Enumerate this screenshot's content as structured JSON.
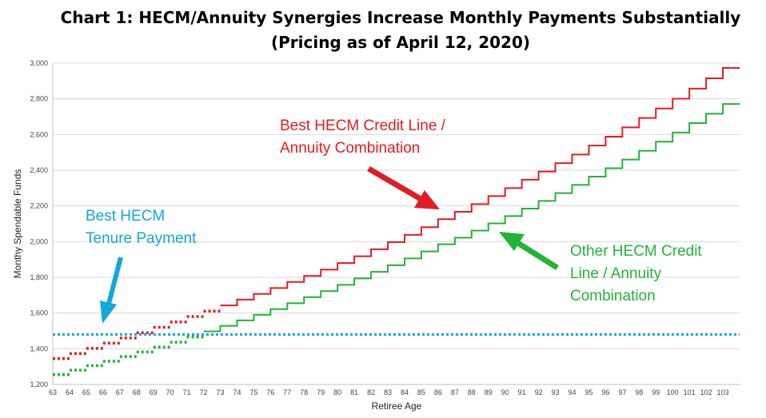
{
  "chart_data": {
    "type": "line",
    "title": "Chart 1: HECM/Annuity Synergies Increase Monthly Payments Substantially",
    "subtitle": "(Pricing as of April 12, 2020)",
    "xlabel": "Retiree Age",
    "ylabel": "Monthy Spendable Funds",
    "xlim": [
      63,
      104
    ],
    "ylim": [
      1200,
      3000
    ],
    "y_ticks": [
      1200,
      1400,
      1600,
      1800,
      2000,
      2200,
      2400,
      2600,
      2800,
      3000
    ],
    "y_tick_labels": [
      "1,200",
      "1,400",
      "1,600",
      "1,800",
      "2,000",
      "2,200",
      "2,400",
      "2,600",
      "2,800",
      "3,000"
    ],
    "x_ticks": [
      63,
      64,
      65,
      66,
      67,
      68,
      69,
      70,
      71,
      72,
      73,
      74,
      75,
      76,
      77,
      78,
      79,
      80,
      81,
      82,
      83,
      84,
      85,
      86,
      87,
      88,
      89,
      90,
      91,
      92,
      93,
      94,
      95,
      96,
      97,
      98,
      99,
      100,
      101,
      102,
      103
    ],
    "grid": true,
    "series": [
      {
        "name": "Best HECM Credit Line / Annuity Combination",
        "color": "#e31c23",
        "style": "step",
        "dotted_until": 73,
        "x": [
          63,
          64,
          65,
          66,
          67,
          68,
          69,
          70,
          71,
          72,
          73,
          74,
          75,
          76,
          77,
          78,
          79,
          80,
          81,
          82,
          83,
          84,
          85,
          86,
          87,
          88,
          89,
          90,
          91,
          92,
          93,
          94,
          95,
          96,
          97,
          98,
          99,
          100,
          101,
          102,
          103
        ],
        "values": [
          1345,
          1373,
          1402,
          1431,
          1460,
          1490,
          1520,
          1550,
          1580,
          1611,
          1643,
          1675,
          1707,
          1740,
          1774,
          1808,
          1843,
          1880,
          1918,
          1957,
          1997,
          2038,
          2081,
          2126,
          2167,
          2210,
          2255,
          2300,
          2347,
          2393,
          2440,
          2488,
          2538,
          2588,
          2640,
          2693,
          2746,
          2801,
          2857,
          2915,
          2973
        ]
      },
      {
        "name": "Other HECM Credit Line / Annuity Combination",
        "color": "#22b339",
        "style": "step",
        "dotted_until": 72,
        "x": [
          63,
          64,
          65,
          66,
          67,
          68,
          69,
          70,
          71,
          72,
          73,
          74,
          75,
          76,
          77,
          78,
          79,
          80,
          81,
          82,
          83,
          84,
          85,
          86,
          87,
          88,
          89,
          90,
          91,
          92,
          93,
          94,
          95,
          96,
          97,
          98,
          99,
          100,
          101,
          102,
          103
        ],
        "values": [
          1255,
          1280,
          1305,
          1330,
          1356,
          1382,
          1409,
          1437,
          1466,
          1497,
          1528,
          1559,
          1590,
          1622,
          1655,
          1689,
          1723,
          1758,
          1794,
          1831,
          1868,
          1906,
          1945,
          1985,
          2022,
          2062,
          2102,
          2143,
          2185,
          2228,
          2272,
          2318,
          2364,
          2411,
          2460,
          2509,
          2560,
          2611,
          2664,
          2717,
          2771
        ]
      },
      {
        "name": "Best HECM Tenure Payment",
        "color": "#12a8d8",
        "style": "dotted",
        "x": [
          63,
          104
        ],
        "values": [
          1480,
          1480
        ]
      }
    ],
    "annotations": [
      {
        "lines": [
          "Best HECM Credit Line /",
          "Annuity Combination"
        ],
        "color": "#e31c23"
      },
      {
        "lines": [
          "Best HECM",
          "Tenure Payment"
        ],
        "color": "#12a8d8"
      },
      {
        "lines": [
          "Other HECM Credit",
          "Line / Annuity",
          "Combination"
        ],
        "color": "#22b339"
      }
    ]
  }
}
